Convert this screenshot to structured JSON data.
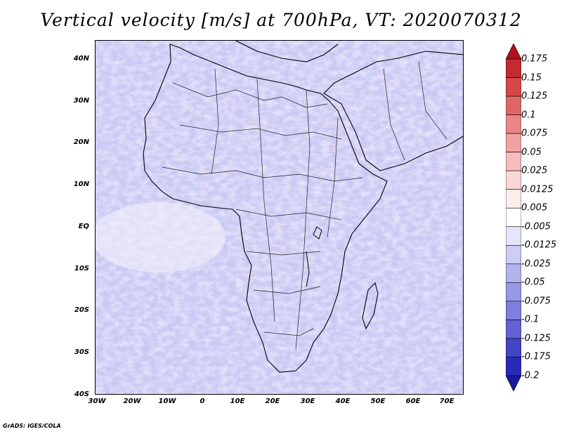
{
  "title": "Vertical velocity [m/s] at 700hPa, VT: 2020070312",
  "map": {
    "region": "Africa and Arabian Peninsula",
    "lon_range": [
      -30,
      75
    ],
    "lat_range": [
      -40,
      45
    ],
    "field": "Vertical velocity",
    "units": "m/s",
    "level": "700hPa",
    "valid_time": "2020070312"
  },
  "lat_labels": [
    "40N",
    "30N",
    "20N",
    "10N",
    "EQ",
    "10S",
    "20S",
    "30S",
    "40S"
  ],
  "lon_labels": [
    "30W",
    "20W",
    "10W",
    "0",
    "10E",
    "20E",
    "30E",
    "40E",
    "50E",
    "60E",
    "70E"
  ],
  "colorbar": {
    "labels": [
      "0.175",
      "0.15",
      "0.125",
      "0.1",
      "0.075",
      "0.05",
      "0.025",
      "0.0125",
      "0.005",
      "-0.005",
      "-0.0125",
      "-0.025",
      "-0.05",
      "-0.075",
      "-0.1",
      "-0.125",
      "-0.175",
      "-0.2"
    ],
    "colors": [
      "#b01020",
      "#c42a30",
      "#d64848",
      "#e06666",
      "#ea8686",
      "#f0a2a2",
      "#f6bcbc",
      "#fad6d6",
      "#fdeeee",
      "#ffffff",
      "#e4e4fa",
      "#ccccf4",
      "#b2b2ee",
      "#9898e6",
      "#7e7edc",
      "#6262d2",
      "#4444c6",
      "#2a2ab8",
      "#1818a0"
    ]
  },
  "credit": "GrADS: IGES/COLA"
}
